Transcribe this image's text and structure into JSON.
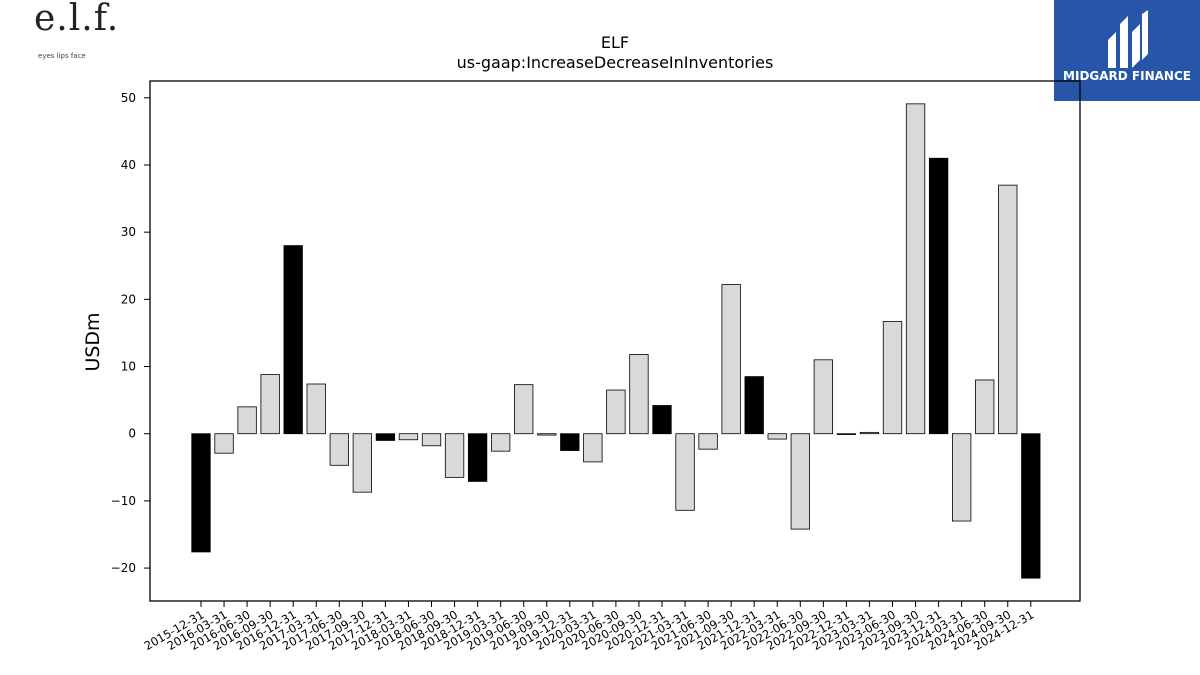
{
  "logos": {
    "elf_wordmark": "e.l.f.",
    "elf_tagline": "eyes lips face",
    "midgard_name": "MIDGARD FINANCE"
  },
  "chart_data": {
    "type": "bar",
    "title": "ELF",
    "subtitle": "us-gaap:IncreaseDecreaseInInventories",
    "xlabel": "",
    "ylabel": "USDm",
    "ylim": [
      -24.9,
      52.5
    ],
    "yticks": [
      -20,
      -10,
      0,
      10,
      20,
      30,
      40,
      50
    ],
    "grid": false,
    "categories": [
      "2015-12-31",
      "2016-03-31",
      "2016-06-30",
      "2016-09-30",
      "2016-12-31",
      "2017-03-31",
      "2017-06-30",
      "2017-09-30",
      "2017-12-31",
      "2018-03-31",
      "2018-06-30",
      "2018-09-30",
      "2018-12-31",
      "2019-03-31",
      "2019-06-30",
      "2019-09-30",
      "2019-12-31",
      "2020-03-31",
      "2020-06-30",
      "2020-09-30",
      "2020-12-31",
      "2021-03-31",
      "2021-06-30",
      "2021-09-30",
      "2021-12-31",
      "2022-03-31",
      "2022-06-30",
      "2022-09-30",
      "2022-12-31",
      "2023-03-31",
      "2023-06-30",
      "2023-09-30",
      "2023-12-31",
      "2024-03-31",
      "2024-06-30",
      "2024-09-30",
      "2024-12-31"
    ],
    "values": [
      -17.6,
      -2.9,
      4.0,
      8.8,
      28.0,
      7.4,
      -4.7,
      -8.7,
      -1.0,
      -0.9,
      -1.8,
      -6.5,
      -7.1,
      -2.6,
      7.3,
      -0.2,
      -2.5,
      -4.2,
      6.5,
      11.8,
      4.2,
      -11.4,
      -2.3,
      22.2,
      8.5,
      -0.8,
      -14.2,
      11.0,
      -0.1,
      0.2,
      16.7,
      49.1,
      41.0,
      -13.0,
      8.0,
      37.0,
      -21.5
    ],
    "highlight_color": "#000000",
    "bar_color": "#d9d9d9",
    "edge_color": "#000000",
    "highlighted_categories": [
      "2015-12-31",
      "2016-12-31",
      "2017-12-31",
      "2018-12-31",
      "2019-12-31",
      "2020-12-31",
      "2021-12-31",
      "2022-12-31",
      "2023-12-31",
      "2024-12-31"
    ]
  }
}
